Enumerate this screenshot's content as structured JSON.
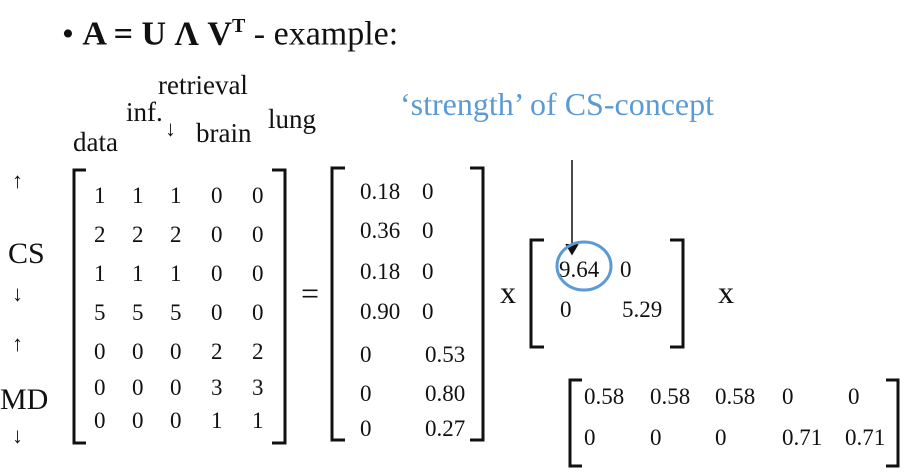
{
  "title": {
    "prefix": "• ",
    "formula": "A = U Λ V",
    "superscript": "T",
    "suffix": " - example:"
  },
  "column_labels": [
    "data",
    "inf.",
    "retrieval",
    "brain",
    "lung"
  ],
  "down_arrow": "↓",
  "annotation": "‘strength’ of CS-concept",
  "row_groups": [
    {
      "label": "CS",
      "up_arrow": "↑",
      "down_arrow": "↓"
    },
    {
      "label": "MD",
      "up_arrow": "↑",
      "down_arrow": "↓"
    }
  ],
  "matrix_A": [
    [
      "1",
      "1",
      "1",
      "0",
      "0"
    ],
    [
      "2",
      "2",
      "2",
      "0",
      "0"
    ],
    [
      "1",
      "1",
      "1",
      "0",
      "0"
    ],
    [
      "5",
      "5",
      "5",
      "0",
      "0"
    ],
    [
      "0",
      "0",
      "0",
      "2",
      "2"
    ],
    [
      "0",
      "0",
      "0",
      "3",
      "3"
    ],
    [
      "0",
      "0",
      "0",
      "1",
      "1"
    ]
  ],
  "equals": "=",
  "matrix_U": [
    [
      "0.18",
      "0"
    ],
    [
      "0.36",
      "0"
    ],
    [
      "0.18",
      "0"
    ],
    [
      "0.90",
      "0"
    ],
    [
      "0",
      "0.53"
    ],
    [
      "0",
      "0.80"
    ],
    [
      "0",
      "0.27"
    ]
  ],
  "times": "x",
  "matrix_Lambda": [
    [
      "9.64",
      "0"
    ],
    [
      "0",
      "5.29"
    ]
  ],
  "matrix_VT": [
    [
      "0.58",
      "0.58",
      "0.58",
      "0",
      "0"
    ],
    [
      "0",
      "0",
      "0",
      "0.71",
      "0.71"
    ]
  ],
  "colors": {
    "text": "#111111",
    "accent": "#5b9bd5"
  }
}
